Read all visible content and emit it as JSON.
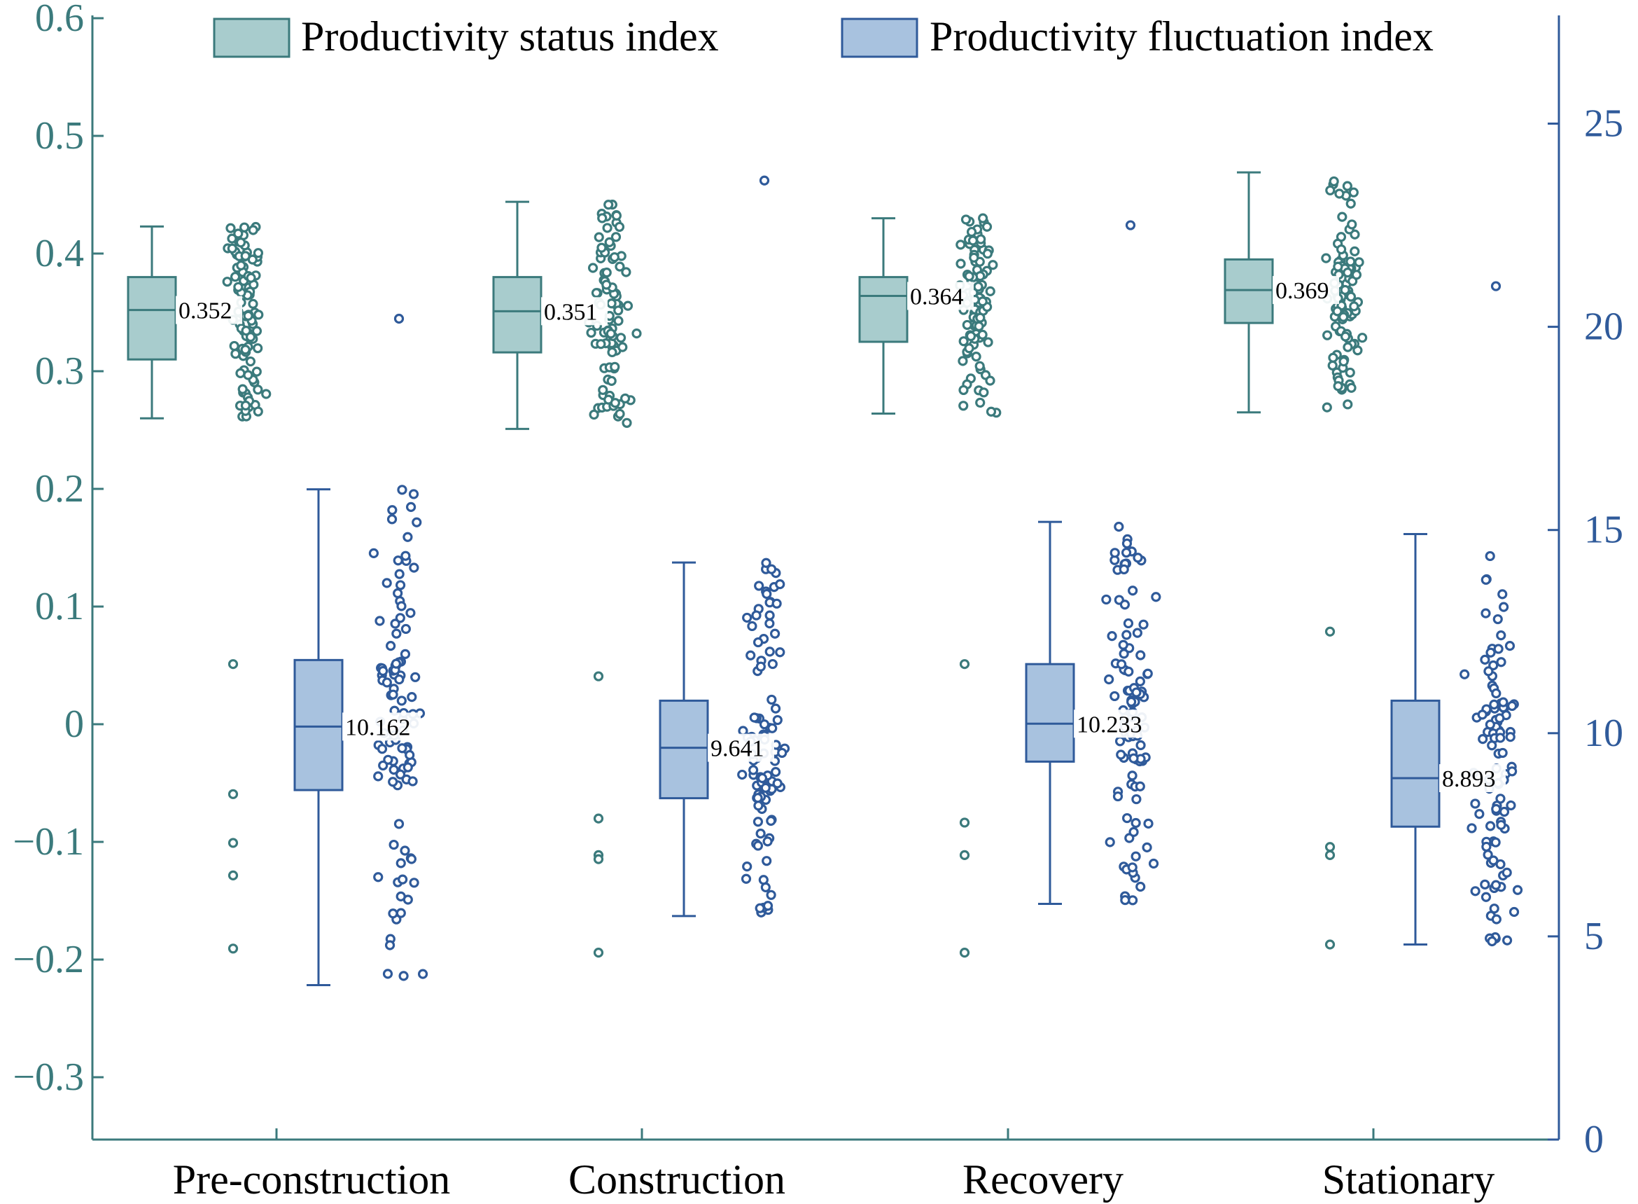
{
  "chart_data": {
    "type": "box",
    "title": "",
    "xlabel": "",
    "ylabel_left": "",
    "ylabel_right": "",
    "categories": [
      "Pre-construction",
      "Construction",
      "Recovery",
      "Stationary"
    ],
    "left_axis": {
      "ylim": [
        -0.35,
        0.6
      ],
      "ticks": [
        0.6,
        0.5,
        0.4,
        0.3,
        0.2,
        0.1,
        0,
        -0.1,
        -0.2,
        -0.3
      ],
      "tick_labels": [
        "0.6",
        "0.5",
        "0.4",
        "0.3",
        "0.2",
        "0.1",
        "0",
        "−0.1",
        "−0.2",
        "−0.3"
      ]
    },
    "right_axis": {
      "ylim": [
        0,
        27.8
      ],
      "ticks": [
        25,
        20,
        15,
        10,
        5,
        0
      ],
      "tick_labels": [
        "25",
        "20",
        "15",
        "10",
        "5",
        "0"
      ]
    },
    "legend_position": "top",
    "grid": false,
    "colors": {
      "status_fill": "#a8cccd",
      "status_edge": "#3b7a7c",
      "fluct_fill": "#a8c2df",
      "fluct_edge": "#2f5a9a",
      "left_axis": "#3b7a7c",
      "right_axis": "#2f5a9a"
    },
    "series": [
      {
        "name": "Productivity status index",
        "axis": "left",
        "boxes": [
          {
            "category": "Pre-construction",
            "whisker_low": 0.26,
            "q1": 0.31,
            "median": 0.352,
            "q3": 0.38,
            "whisker_high": 0.423,
            "median_label": "0.352",
            "outliers": []
          },
          {
            "category": "Construction",
            "whisker_low": 0.251,
            "q1": 0.316,
            "median": 0.351,
            "q3": 0.38,
            "whisker_high": 0.444,
            "median_label": "0.351",
            "outliers": []
          },
          {
            "category": "Recovery",
            "whisker_low": 0.264,
            "q1": 0.325,
            "median": 0.364,
            "q3": 0.38,
            "whisker_high": 0.43,
            "median_label": "0.364",
            "outliers": []
          },
          {
            "category": "Stationary",
            "whisker_low": 0.265,
            "q1": 0.341,
            "median": 0.369,
            "q3": 0.395,
            "whisker_high": 0.469,
            "median_label": "0.369",
            "outliers": []
          }
        ]
      },
      {
        "name": "Productivity fluctuation index",
        "axis": "right",
        "boxes": [
          {
            "category": "Pre-construction",
            "whisker_low": 3.8,
            "q1": 8.6,
            "median": 10.162,
            "q3": 11.8,
            "whisker_high": 16.0,
            "median_label": "10.162",
            "outliers": [
              20.2,
              11.7,
              8.5,
              7.3,
              6.5,
              4.7
            ]
          },
          {
            "category": "Construction",
            "whisker_low": 5.5,
            "q1": 8.4,
            "median": 9.641,
            "q3": 10.8,
            "whisker_high": 14.2,
            "median_label": "9.641",
            "outliers": [
              23.6,
              11.4,
              7.9,
              7.0,
              6.9,
              4.6
            ]
          },
          {
            "category": "Recovery",
            "whisker_low": 5.8,
            "q1": 9.3,
            "median": 10.233,
            "q3": 11.7,
            "whisker_high": 15.2,
            "median_label": "10.233",
            "outliers": [
              22.5,
              11.7,
              7.8,
              7.0,
              4.6
            ]
          },
          {
            "category": "Stationary",
            "whisker_low": 4.8,
            "q1": 7.7,
            "median": 8.893,
            "q3": 10.8,
            "whisker_high": 14.9,
            "median_label": "8.893",
            "outliers": [
              21.0,
              12.5,
              7.2,
              7.0,
              4.8
            ]
          }
        ]
      }
    ]
  }
}
